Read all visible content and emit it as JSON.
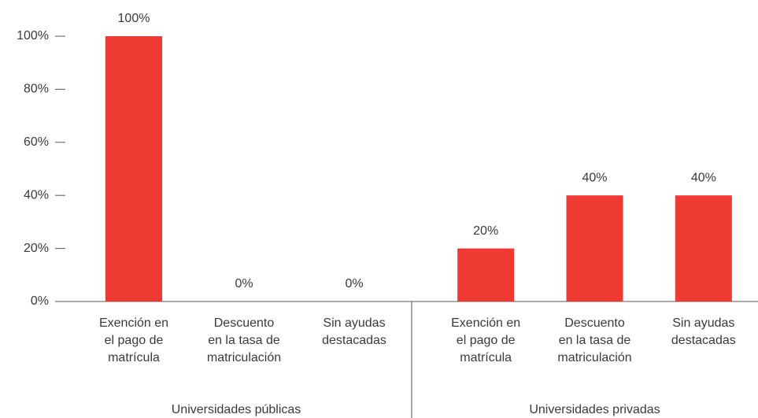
{
  "chart_data": {
    "type": "bar",
    "color": "#ee3a33",
    "ylim": [
      0,
      100
    ],
    "yticks": [
      {
        "value": 0,
        "label": "0%"
      },
      {
        "value": 20,
        "label": "20%"
      },
      {
        "value": 40,
        "label": "40%"
      },
      {
        "value": 60,
        "label": "60%"
      },
      {
        "value": 80,
        "label": "80%"
      },
      {
        "value": 100,
        "label": "100%"
      }
    ],
    "groups": [
      {
        "name": "Universidades públicas",
        "categories": [
          "Exención en\nel  pago de\nmatrícula",
          "Descuento\nen la tasa de\nmatriculación",
          "Sin ayudas\ndestacadas"
        ],
        "values": [
          100,
          0,
          0
        ],
        "value_labels": [
          "100%",
          "0%",
          "0%"
        ]
      },
      {
        "name": "Universidades privadas",
        "categories": [
          "Exención en\nel pago de\nmatrícula",
          "Descuento\nen la tasa de\nmatriculación",
          "Sin ayudas\ndestacadas"
        ],
        "values": [
          20,
          40,
          40
        ],
        "value_labels": [
          "20%",
          "40%",
          "40%"
        ]
      }
    ]
  }
}
